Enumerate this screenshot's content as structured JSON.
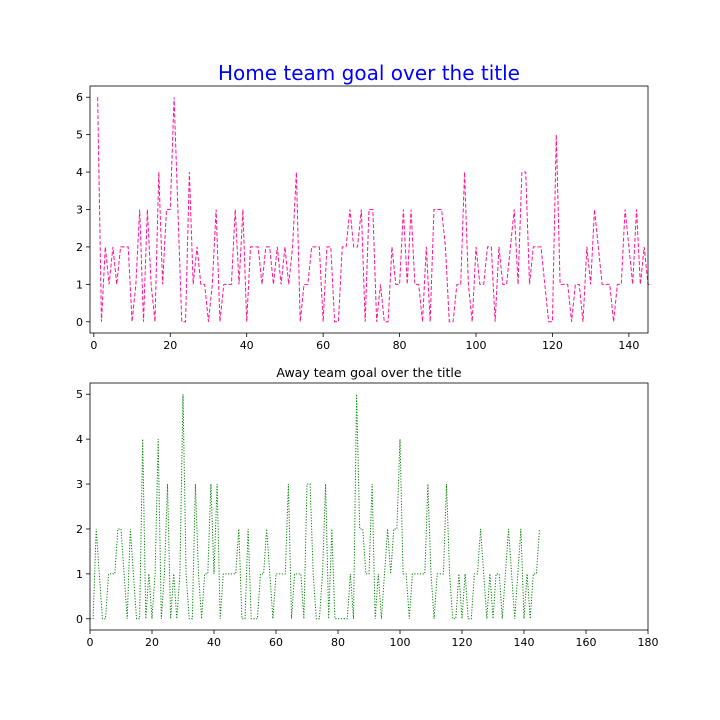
{
  "chart_data": [
    {
      "type": "line",
      "title": "Home team goal over the title",
      "title_color": "#0000ff",
      "xlabel": "",
      "ylabel": "",
      "line_color": "#ff1493",
      "line_style": "dashed",
      "xlim": [
        -1,
        145
      ],
      "ylim": [
        -0.3,
        6.3
      ],
      "xticks": [
        0,
        20,
        40,
        60,
        80,
        100,
        120,
        140
      ],
      "yticks": [
        0,
        1,
        2,
        3,
        4,
        5,
        6
      ],
      "grid": false,
      "x_start": 1,
      "values": [
        6,
        0,
        2,
        1,
        2,
        1,
        2,
        2,
        2,
        0,
        1,
        3,
        0,
        3,
        1,
        0,
        4,
        1,
        3,
        3,
        6,
        3,
        0,
        0,
        4,
        1,
        2,
        1,
        1,
        0,
        1,
        3,
        0,
        1,
        1,
        1,
        3,
        1,
        3,
        0,
        2,
        2,
        2,
        1,
        2,
        2,
        1,
        2,
        1,
        2,
        1,
        2,
        4,
        0,
        1,
        1,
        2,
        2,
        2,
        0,
        2,
        2,
        0,
        0,
        2,
        2,
        3,
        2,
        2,
        3,
        0,
        3,
        3,
        0,
        1,
        0,
        0,
        2,
        1,
        1,
        3,
        1,
        3,
        1,
        1,
        0,
        2,
        0,
        3,
        3,
        3,
        2,
        0,
        0,
        1,
        1,
        4,
        1,
        0,
        2,
        1,
        1,
        2,
        2,
        0,
        2,
        1,
        1,
        2,
        3,
        1,
        4,
        4,
        1,
        2,
        2,
        2,
        1,
        0,
        0,
        5,
        1,
        1,
        1,
        0,
        1,
        1,
        0,
        2,
        1,
        3,
        2,
        1,
        1,
        1,
        0,
        1,
        1,
        3,
        2,
        1,
        3,
        1,
        2,
        1,
        1
      ]
    },
    {
      "type": "line",
      "title": "Away team goal over the title",
      "xlabel": "",
      "ylabel": "",
      "line_color": "#008000",
      "line_style": "dotted",
      "xlim": [
        0,
        180
      ],
      "ylim": [
        -0.25,
        5.25
      ],
      "xticks": [
        0,
        20,
        40,
        60,
        80,
        100,
        120,
        140,
        160,
        180
      ],
      "yticks": [
        0,
        1,
        2,
        3,
        4,
        5
      ],
      "grid": false,
      "x_start": 0,
      "values": [
        0,
        0,
        2,
        1,
        0,
        0,
        1,
        1,
        1,
        2,
        2,
        1,
        0,
        2,
        1,
        0,
        0,
        4,
        0,
        1,
        0,
        1,
        4,
        0,
        1,
        3,
        0,
        1,
        0,
        1,
        5,
        1,
        0,
        0,
        3,
        1,
        0,
        1,
        1,
        3,
        1,
        3,
        0,
        1,
        1,
        1,
        1,
        1,
        2,
        0,
        0,
        2,
        0,
        0,
        0,
        1,
        1,
        2,
        1,
        0,
        1,
        1,
        1,
        1,
        3,
        0,
        1,
        1,
        1,
        0,
        3,
        3,
        1,
        0,
        0,
        1,
        3,
        0,
        2,
        0,
        0,
        0,
        0,
        0,
        1,
        0,
        5,
        2,
        2,
        1,
        1,
        3,
        0,
        1,
        0,
        1,
        2,
        1,
        2,
        2,
        4,
        1,
        1,
        0,
        1,
        1,
        1,
        1,
        1,
        3,
        1,
        0,
        1,
        1,
        1,
        3,
        1,
        0,
        0,
        1,
        0,
        1,
        0,
        0,
        1,
        1,
        2,
        1,
        0,
        1,
        0,
        1,
        1,
        0,
        1,
        2,
        1,
        0,
        1,
        2,
        0,
        1,
        0,
        1,
        1,
        2
      ]
    }
  ]
}
